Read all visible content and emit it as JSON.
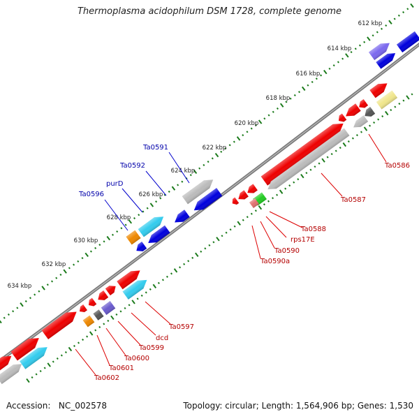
{
  "title": "Thermoplasma acidophilum DSM 1728, complete genome",
  "footer": {
    "accession_label": "Accession:",
    "accession": "NC_002578",
    "topology_label": "Topology:",
    "topology": "circular",
    "length_label": "Length:",
    "length": "1,564,906 bp",
    "genes_label": "Genes:",
    "genes": "1,530"
  },
  "colors": {
    "backbone": "#7a7a7a",
    "ticks": "#1a7a1a",
    "tick_label": "#222222",
    "gene_label_red": "#b40000",
    "gene_label_blue": "#0000aa",
    "leader_red": "#dd0000",
    "leader_blue": "#0000cc"
  },
  "ruler": {
    "unit": "kbp",
    "labels": [
      "612 kbp",
      "614 kbp",
      "616 kbp",
      "618 kbp",
      "620 kbp",
      "622 kbp",
      "624 kbp",
      "626 kbp",
      "628 kbp",
      "630 kbp",
      "632 kbp",
      "634 kbp"
    ]
  },
  "gene_labels": [
    {
      "text": "Ta0586",
      "color": "red"
    },
    {
      "text": "Ta0587",
      "color": "red"
    },
    {
      "text": "Ta0588",
      "color": "red"
    },
    {
      "text": "rps17E",
      "color": "red"
    },
    {
      "text": "Ta0590",
      "color": "red"
    },
    {
      "text": "Ta0590a",
      "color": "red"
    },
    {
      "text": "Ta0591",
      "color": "blue"
    },
    {
      "text": "Ta0592",
      "color": "blue"
    },
    {
      "text": "purD",
      "color": "blue"
    },
    {
      "text": "Ta0596",
      "color": "blue"
    },
    {
      "text": "Ta0597",
      "color": "red"
    },
    {
      "text": "dcd",
      "color": "red"
    },
    {
      "text": "Ta0599",
      "color": "red"
    },
    {
      "text": "Ta0600",
      "color": "red"
    },
    {
      "text": "Ta0601",
      "color": "red"
    },
    {
      "text": "Ta0602",
      "color": "red"
    }
  ],
  "features": [
    {
      "color": "#0000dd",
      "arrow": "none"
    },
    {
      "color": "#0000dd",
      "arrow": "end"
    },
    {
      "color": "#7b68ee",
      "arrow": "end"
    },
    {
      "color": "#f0e68c",
      "arrow": "none"
    },
    {
      "color": "#555555",
      "arrow": "start"
    },
    {
      "color": "#ee0000",
      "arrow": "end"
    },
    {
      "color": "#ee0000",
      "arrow": "start"
    },
    {
      "color": "#ee0000",
      "arrow": "start"
    },
    {
      "color": "#ee0000",
      "arrow": "start"
    },
    {
      "color": "#bbbbbb",
      "arrow": "start"
    },
    {
      "color": "#ee0000",
      "arrow": "end"
    },
    {
      "color": "#bbbbbb",
      "arrow": "start"
    },
    {
      "color": "#ee0000",
      "arrow": "start"
    },
    {
      "color": "#ee0000",
      "arrow": "start"
    },
    {
      "color": "#ee0000",
      "arrow": "start"
    },
    {
      "color": "#22cc22",
      "arrow": "none"
    },
    {
      "color": "#e07070",
      "arrow": "none"
    },
    {
      "color": "#bbbbbb",
      "arrow": "end"
    },
    {
      "color": "#0000dd",
      "arrow": "start"
    },
    {
      "color": "#0000dd",
      "arrow": "start"
    },
    {
      "color": "#33ccee",
      "arrow": "end"
    },
    {
      "color": "#0000dd",
      "arrow": "start"
    },
    {
      "color": "#ee8800",
      "arrow": "none"
    },
    {
      "color": "#0000dd",
      "arrow": "start"
    },
    {
      "color": "#ee0000",
      "arrow": "end"
    },
    {
      "color": "#33ccee",
      "arrow": "end"
    },
    {
      "color": "#ee0000",
      "arrow": "end"
    },
    {
      "color": "#6a5acd",
      "arrow": "none"
    },
    {
      "color": "#ee0000",
      "arrow": "start"
    },
    {
      "color": "#ee0000",
      "arrow": "start"
    },
    {
      "color": "#ee0000",
      "arrow": "start"
    },
    {
      "color": "#555555",
      "arrow": "none"
    },
    {
      "color": "#ee8800",
      "arrow": "none"
    },
    {
      "color": "#ee0000",
      "arrow": "end"
    },
    {
      "color": "#ee0000",
      "arrow": "end"
    },
    {
      "color": "#33ccee",
      "arrow": "end"
    },
    {
      "color": "#ee0000",
      "arrow": "end"
    },
    {
      "color": "#bbbbbb",
      "arrow": "end"
    }
  ]
}
